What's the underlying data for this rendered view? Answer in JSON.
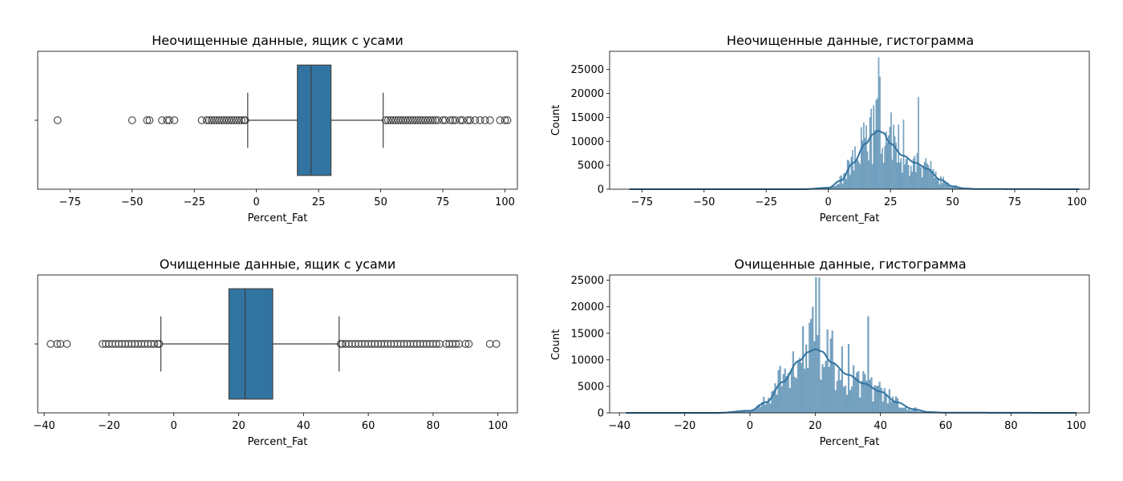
{
  "chart_data": [
    {
      "type": "box",
      "title": "Неочищенные данные, ящик с усами",
      "xlabel": "Percent_Fat",
      "xlim": [
        -88,
        105
      ],
      "xticks": [
        -75,
        -50,
        -25,
        0,
        25,
        50,
        75,
        100
      ],
      "xtick_labels": [
        "−75",
        "−50",
        "−25",
        "0",
        "25",
        "50",
        "75",
        "100"
      ],
      "box": {
        "q1": 16.5,
        "median": 22,
        "q3": 30,
        "whisker_low": -3.5,
        "whisker_high": 51
      },
      "color": "#3274a1",
      "outliers_low": [
        -80,
        -50,
        -44,
        -43,
        -38,
        -36,
        -35,
        -33,
        -22,
        -20,
        -19,
        -18,
        -17,
        -16,
        -15,
        -14,
        -13,
        -12,
        -11,
        -10,
        -9,
        -8,
        -7,
        -6,
        -5,
        -4.5
      ],
      "outliers_high": [
        52,
        53,
        54,
        55,
        56,
        57,
        58,
        59,
        60,
        61,
        62,
        63,
        64,
        65,
        66,
        67,
        68,
        69,
        70,
        71,
        72,
        73,
        75,
        76,
        78,
        79,
        80,
        82,
        83,
        85,
        86,
        88,
        90,
        92,
        94,
        98,
        100,
        101
      ]
    },
    {
      "type": "histogram",
      "title": "Неочищенные данные, гистограмма",
      "xlabel": "Percent_Fat",
      "ylabel": "Count",
      "xlim": [
        -88,
        105
      ],
      "ylim": [
        0,
        28800
      ],
      "xticks": [
        -75,
        -50,
        -25,
        0,
        25,
        50,
        75,
        100
      ],
      "xtick_labels": [
        "−75",
        "−50",
        "−25",
        "0",
        "25",
        "50",
        "75",
        "100"
      ],
      "yticks": [
        0,
        5000,
        10000,
        15000,
        20000,
        25000
      ],
      "color": "#3274a1",
      "range": [
        -80,
        101
      ],
      "peaks": [
        [
          20,
          27500
        ],
        [
          20.5,
          23500
        ],
        [
          19.5,
          19000
        ],
        [
          36,
          19200
        ],
        [
          18,
          17500
        ],
        [
          25,
          16000
        ],
        [
          30,
          14500
        ],
        [
          28,
          13500
        ]
      ],
      "kde": [
        [
          -80,
          0
        ],
        [
          -10,
          0
        ],
        [
          0,
          300
        ],
        [
          5,
          1800
        ],
        [
          10,
          5500
        ],
        [
          15,
          9500
        ],
        [
          18,
          11500
        ],
        [
          20,
          12200
        ],
        [
          22,
          11800
        ],
        [
          25,
          9500
        ],
        [
          30,
          7000
        ],
        [
          35,
          5500
        ],
        [
          40,
          4200
        ],
        [
          45,
          2000
        ],
        [
          50,
          600
        ],
        [
          55,
          150
        ],
        [
          60,
          30
        ],
        [
          101,
          0
        ]
      ]
    },
    {
      "type": "box",
      "title": "Очищенные данные, ящик с усами",
      "xlabel": "Percent_Fat",
      "xlim": [
        -42,
        106
      ],
      "xticks": [
        -40,
        -20,
        0,
        20,
        40,
        60,
        80,
        100
      ],
      "xtick_labels": [
        "−40",
        "−20",
        "0",
        "20",
        "40",
        "60",
        "80",
        "100"
      ],
      "box": {
        "q1": 17,
        "median": 22,
        "q3": 30.5,
        "whisker_low": -4,
        "whisker_high": 51
      },
      "color": "#3274a1",
      "outliers_low": [
        -38,
        -36,
        -35,
        -33,
        -22,
        -21,
        -20,
        -19,
        -18,
        -17,
        -16,
        -15,
        -14,
        -13,
        -12,
        -11,
        -10,
        -9,
        -8,
        -7,
        -6,
        -5,
        -4.5
      ],
      "outliers_high": [
        51.5,
        52,
        53,
        54,
        55,
        56,
        57,
        58,
        59,
        60,
        61,
        62,
        63,
        64,
        65,
        66,
        67,
        68,
        69,
        70,
        71,
        72,
        73,
        74,
        75,
        76,
        77,
        78,
        79,
        80,
        81,
        82,
        84,
        85,
        86,
        87,
        88,
        90,
        91,
        97.5,
        99.5
      ]
    },
    {
      "type": "histogram",
      "title": "Очищенные данные, гистограмма",
      "xlabel": "Percent_Fat",
      "ylabel": "Count",
      "xlim": [
        -43,
        104
      ],
      "ylim": [
        0,
        26000
      ],
      "xticks": [
        -40,
        -20,
        0,
        20,
        40,
        60,
        80,
        100
      ],
      "xtick_labels": [
        "−40",
        "−20",
        "0",
        "20",
        "40",
        "60",
        "80",
        "100"
      ],
      "yticks": [
        0,
        5000,
        10000,
        15000,
        20000,
        25000
      ],
      "color": "#3274a1",
      "range": [
        -38,
        100
      ],
      "peaks": [
        [
          20,
          25600
        ],
        [
          21,
          25500
        ],
        [
          19,
          20000
        ],
        [
          36,
          18200
        ],
        [
          18,
          17000
        ],
        [
          25,
          15500
        ],
        [
          30,
          13000
        ],
        [
          28,
          12500
        ]
      ],
      "kde": [
        [
          -38,
          0
        ],
        [
          -10,
          0
        ],
        [
          0,
          400
        ],
        [
          5,
          2000
        ],
        [
          10,
          5800
        ],
        [
          15,
          9800
        ],
        [
          18,
          11500
        ],
        [
          20,
          12000
        ],
        [
          22,
          11600
        ],
        [
          25,
          9500
        ],
        [
          30,
          7200
        ],
        [
          35,
          5500
        ],
        [
          40,
          4000
        ],
        [
          45,
          2000
        ],
        [
          50,
          700
        ],
        [
          55,
          150
        ],
        [
          60,
          30
        ],
        [
          100,
          0
        ]
      ]
    }
  ]
}
